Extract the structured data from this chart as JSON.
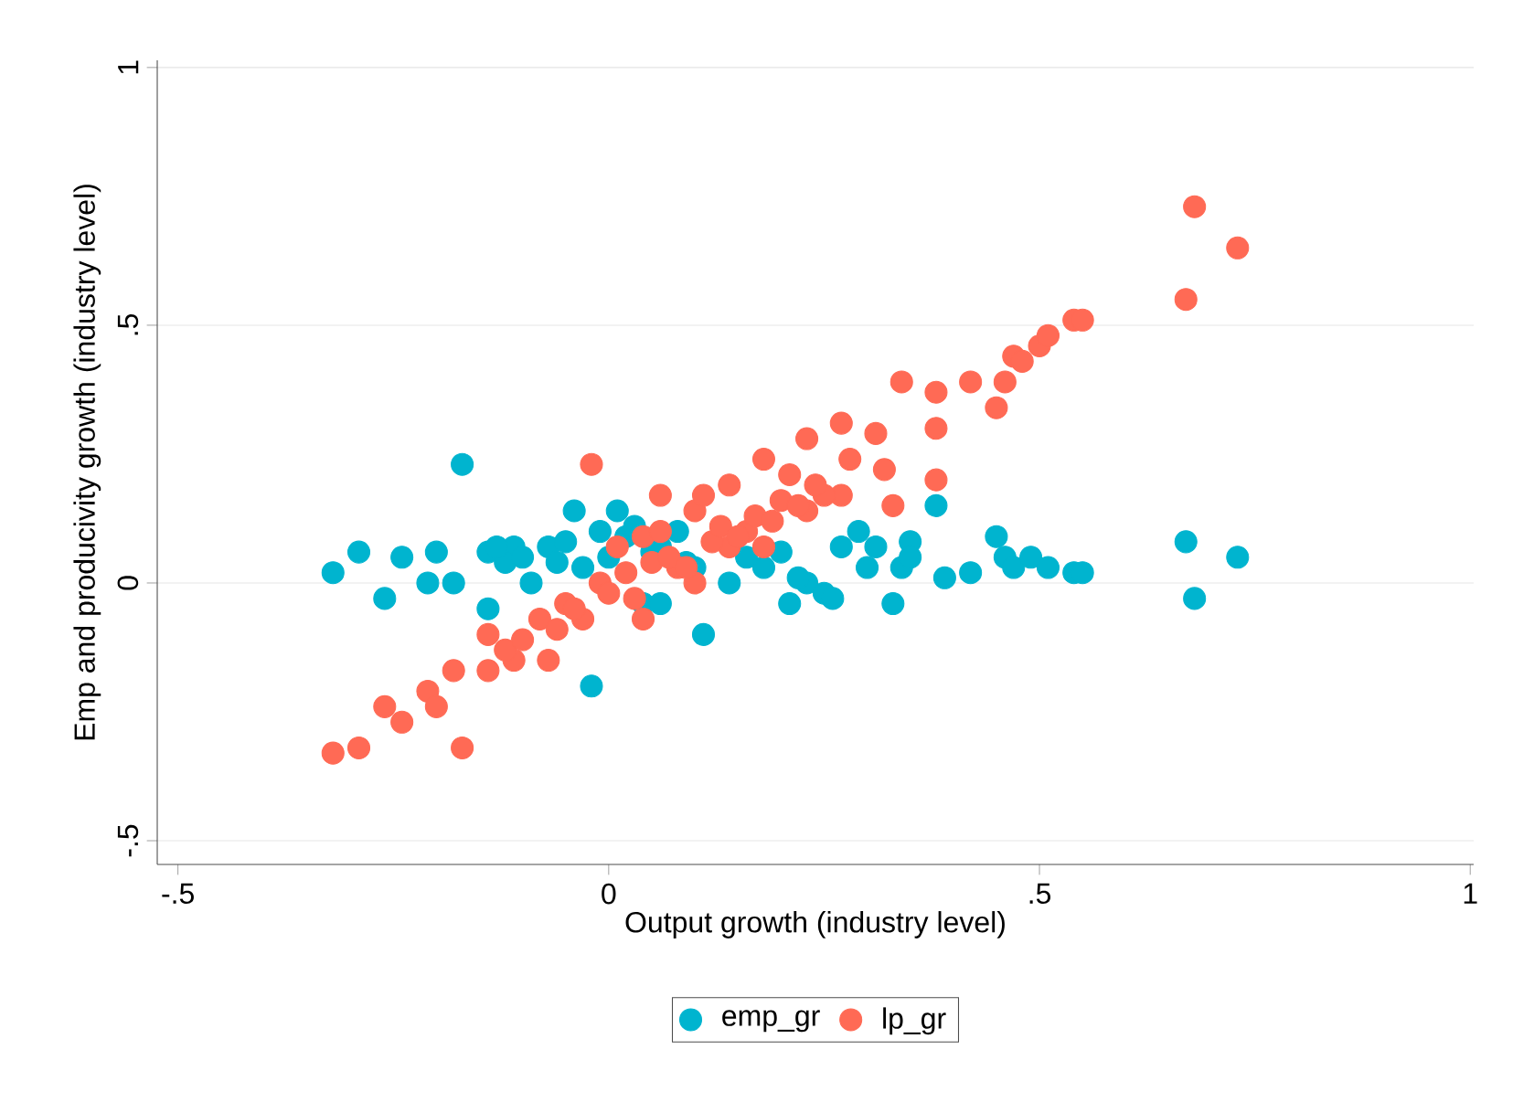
{
  "chart_data": {
    "type": "scatter",
    "xlabel": "Output growth (industry level)",
    "ylabel": "Emp and producivity growth (industry level)",
    "xlim": [
      -0.524,
      1.004
    ],
    "ylim": [
      -0.546,
      1.014
    ],
    "xticks": [
      {
        "value": -0.5,
        "label": "-.5"
      },
      0,
      {
        "value": 0.5,
        "label": ".5"
      },
      1
    ],
    "yticks": [
      {
        "value": -0.5,
        "label": "-.5"
      },
      0,
      {
        "value": 0.5,
        "label": ".5"
      },
      1
    ],
    "grid": "y",
    "legend": "bottom",
    "marker": "circle",
    "series": [
      {
        "name": "emp_gr",
        "color": "#00b4cf",
        "x": [
          -0.32,
          -0.29,
          -0.26,
          -0.24,
          -0.21,
          -0.2,
          -0.17,
          -0.18,
          -0.14,
          -0.14,
          -0.11,
          -0.07,
          -0.04,
          -0.02,
          -0.03,
          0.01,
          0.04,
          0.11,
          0.06,
          0.1,
          0.14,
          0.18,
          0.23,
          0.27,
          0.31,
          0.33,
          0.34,
          0.38,
          0.39,
          0.35,
          0.42,
          0.45,
          0.46,
          0.47,
          0.49,
          0.51,
          0.54,
          0.55,
          0.67,
          0.68,
          0.73,
          0.08,
          0.25,
          0.29,
          -0.09,
          -0.01,
          0.06,
          0.21,
          -0.12,
          -0.1,
          -0.06,
          -0.05,
          0.0,
          0.02,
          0.05,
          0.09,
          0.12,
          0.16,
          0.2,
          0.22,
          0.26,
          0.3,
          0.35,
          -0.13,
          0.03
        ],
        "values": [
          0.02,
          0.06,
          -0.03,
          0.05,
          0.0,
          0.06,
          0.23,
          0.0,
          0.06,
          -0.05,
          0.07,
          0.07,
          0.14,
          -0.2,
          0.03,
          0.14,
          -0.04,
          -0.1,
          0.07,
          0.03,
          0.0,
          0.03,
          0.0,
          0.07,
          0.07,
          -0.04,
          0.03,
          0.15,
          0.01,
          0.08,
          0.02,
          0.09,
          0.05,
          0.03,
          0.05,
          0.03,
          0.02,
          0.02,
          0.08,
          -0.03,
          0.05,
          0.1,
          -0.02,
          0.1,
          0.0,
          0.1,
          -0.04,
          -0.04,
          0.04,
          0.05,
          0.04,
          0.08,
          0.05,
          0.09,
          0.06,
          0.04,
          null,
          0.05,
          0.06,
          0.01,
          -0.03,
          0.03,
          0.05,
          0.07,
          0.11
        ]
      },
      {
        "name": "lp_gr",
        "color": "#ff6a55",
        "x": [
          -0.32,
          -0.29,
          -0.26,
          -0.24,
          -0.21,
          -0.2,
          -0.17,
          -0.18,
          -0.14,
          -0.14,
          -0.02,
          -0.08,
          -0.05,
          -0.01,
          0.01,
          0.04,
          0.06,
          0.1,
          0.11,
          0.14,
          0.18,
          0.23,
          0.27,
          0.31,
          0.34,
          0.38,
          0.38,
          0.38,
          0.42,
          0.45,
          0.46,
          0.47,
          0.48,
          0.5,
          0.51,
          0.54,
          0.55,
          0.67,
          0.68,
          0.73,
          0.27,
          0.18,
          0.1,
          -0.07,
          0.04,
          0.14,
          0.23,
          0.32,
          0.33,
          0.06,
          0.21,
          -0.11,
          -0.03,
          0.08,
          0.16,
          0.25,
          -0.12,
          -0.1,
          -0.06,
          -0.04,
          0.0,
          0.02,
          0.03,
          0.05,
          0.07,
          0.09,
          0.12,
          0.13,
          0.15,
          0.17,
          0.19,
          0.2,
          0.22,
          0.24,
          0.28
        ],
        "values": [
          -0.33,
          -0.32,
          -0.24,
          -0.27,
          -0.21,
          -0.24,
          -0.32,
          -0.17,
          -0.17,
          -0.1,
          0.23,
          -0.07,
          -0.04,
          0.0,
          0.07,
          0.09,
          0.1,
          0.14,
          0.17,
          0.19,
          0.24,
          0.28,
          0.31,
          0.29,
          0.39,
          0.37,
          0.3,
          0.2,
          0.39,
          0.34,
          0.39,
          0.44,
          0.43,
          0.46,
          0.48,
          0.51,
          0.51,
          0.55,
          0.73,
          0.65,
          0.17,
          0.07,
          0.0,
          -0.15,
          -0.07,
          0.07,
          0.14,
          0.22,
          0.15,
          0.17,
          0.21,
          -0.15,
          -0.07,
          0.03,
          0.1,
          0.17,
          -0.13,
          -0.11,
          -0.09,
          -0.05,
          -0.02,
          0.02,
          -0.03,
          0.04,
          0.05,
          0.03,
          0.08,
          0.11,
          0.09,
          0.13,
          0.12,
          0.16,
          0.15,
          0.19,
          0.24
        ]
      }
    ]
  }
}
